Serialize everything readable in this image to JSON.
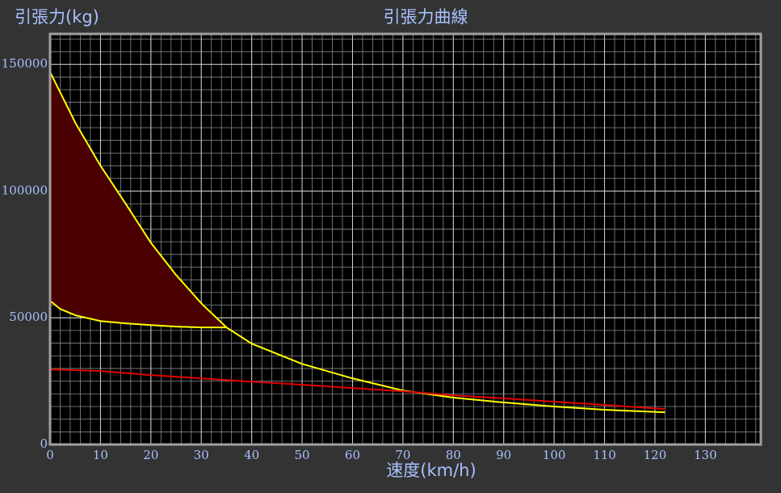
{
  "chart_data": {
    "type": "line",
    "title": "引張力曲線",
    "y_label": "引張力(kg)",
    "x_label": "速度(km/h)",
    "xlim": [
      0,
      141
    ],
    "ylim": [
      0,
      162000
    ],
    "xticks": [
      0,
      10,
      20,
      30,
      40,
      50,
      60,
      70,
      80,
      90,
      100,
      110,
      120,
      130
    ],
    "yticks": [
      0,
      50000,
      100000,
      150000
    ],
    "grid": true,
    "grid_step_x": 2,
    "grid_step_y": 5000,
    "fill_between": [
      0,
      1
    ],
    "fill_color": "#4a0000",
    "series": [
      {
        "color": "#ffff00",
        "x": [
          0,
          5,
          10,
          15,
          20,
          25,
          30,
          35,
          40,
          50,
          60,
          70,
          80,
          90,
          100,
          110,
          122
        ],
        "values": [
          147000,
          127000,
          110000,
          95000,
          79600,
          66900,
          55700,
          46200,
          39800,
          31800,
          26100,
          21300,
          18500,
          16600,
          15000,
          13700,
          12700
        ]
      },
      {
        "color": "#ffff00",
        "x": [
          0,
          2,
          5,
          10,
          15,
          20,
          25,
          30,
          35
        ],
        "values": [
          56700,
          53500,
          51000,
          48700,
          47800,
          47100,
          46500,
          46200,
          46200
        ]
      },
      {
        "color": "#e00000",
        "x": [
          0,
          10,
          20,
          30,
          40,
          50,
          60,
          70,
          80,
          90,
          100,
          110,
          122
        ],
        "values": [
          29600,
          29000,
          27400,
          26100,
          24800,
          23600,
          22300,
          21000,
          19400,
          18200,
          16900,
          15600,
          14000
        ]
      }
    ]
  }
}
